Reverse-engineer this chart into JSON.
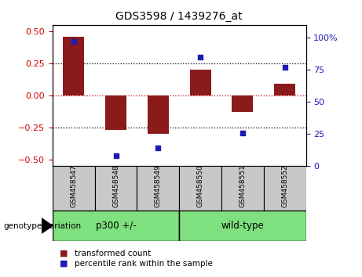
{
  "title": "GDS3598 / 1439276_at",
  "categories": [
    "GSM458547",
    "GSM458548",
    "GSM458549",
    "GSM458550",
    "GSM458551",
    "GSM458552"
  ],
  "bar_values": [
    0.46,
    -0.27,
    -0.3,
    0.2,
    -0.13,
    0.09
  ],
  "scatter_values_pct": [
    97,
    8,
    14,
    85,
    26,
    77
  ],
  "ylim_left": [
    -0.55,
    0.55
  ],
  "ylim_right": [
    0,
    110
  ],
  "yticks_left": [
    -0.5,
    -0.25,
    0,
    0.25,
    0.5
  ],
  "yticks_right": [
    0,
    25,
    50,
    75,
    100
  ],
  "bar_color": "#8B1A1A",
  "scatter_color": "#1C1CB5",
  "hline_color": "#CC0000",
  "dotted_line_color": "#000000",
  "group1_label": "p300 +/-",
  "group2_label": "wild-type",
  "group1_color": "#7EE07E",
  "group2_color": "#7EE07E",
  "genotype_label": "genotype/variation",
  "legend1": "transformed count",
  "legend2": "percentile rank within the sample",
  "left_tick_color": "#CC0000",
  "right_tick_color": "#1C1CB5",
  "label_bg_color": "#C8C8C8",
  "bar_width": 0.5
}
